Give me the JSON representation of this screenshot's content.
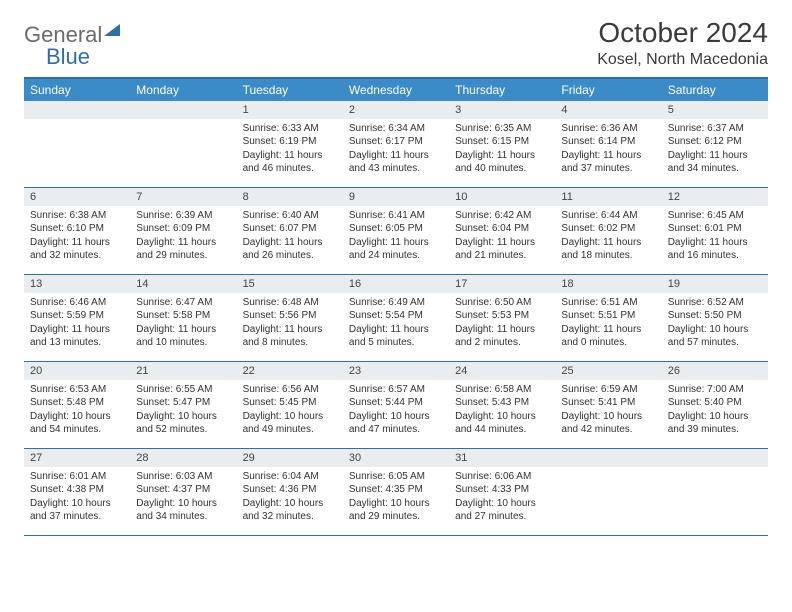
{
  "brand": {
    "part1": "General",
    "part2": "Blue"
  },
  "title": "October 2024",
  "location": "Kosel, North Macedonia",
  "colors": {
    "header_bg": "#3b8bc9",
    "header_text": "#ffffff",
    "rule": "#2f6fa8",
    "daynum_bg": "#e9edef",
    "text": "#333333",
    "logo_gray": "#6b6b6b",
    "logo_blue": "#2f6fa8",
    "page_bg": "#ffffff"
  },
  "calendar": {
    "type": "table",
    "day_labels": [
      "Sunday",
      "Monday",
      "Tuesday",
      "Wednesday",
      "Thursday",
      "Friday",
      "Saturday"
    ],
    "fontsize_header": 12,
    "fontsize_daynum": 11,
    "fontsize_body": 10,
    "weeks": [
      [
        {
          "n": "",
          "sr": "",
          "ss": "",
          "dl1": "",
          "dl2": ""
        },
        {
          "n": "",
          "sr": "",
          "ss": "",
          "dl1": "",
          "dl2": ""
        },
        {
          "n": "1",
          "sr": "Sunrise: 6:33 AM",
          "ss": "Sunset: 6:19 PM",
          "dl1": "Daylight: 11 hours",
          "dl2": "and 46 minutes."
        },
        {
          "n": "2",
          "sr": "Sunrise: 6:34 AM",
          "ss": "Sunset: 6:17 PM",
          "dl1": "Daylight: 11 hours",
          "dl2": "and 43 minutes."
        },
        {
          "n": "3",
          "sr": "Sunrise: 6:35 AM",
          "ss": "Sunset: 6:15 PM",
          "dl1": "Daylight: 11 hours",
          "dl2": "and 40 minutes."
        },
        {
          "n": "4",
          "sr": "Sunrise: 6:36 AM",
          "ss": "Sunset: 6:14 PM",
          "dl1": "Daylight: 11 hours",
          "dl2": "and 37 minutes."
        },
        {
          "n": "5",
          "sr": "Sunrise: 6:37 AM",
          "ss": "Sunset: 6:12 PM",
          "dl1": "Daylight: 11 hours",
          "dl2": "and 34 minutes."
        }
      ],
      [
        {
          "n": "6",
          "sr": "Sunrise: 6:38 AM",
          "ss": "Sunset: 6:10 PM",
          "dl1": "Daylight: 11 hours",
          "dl2": "and 32 minutes."
        },
        {
          "n": "7",
          "sr": "Sunrise: 6:39 AM",
          "ss": "Sunset: 6:09 PM",
          "dl1": "Daylight: 11 hours",
          "dl2": "and 29 minutes."
        },
        {
          "n": "8",
          "sr": "Sunrise: 6:40 AM",
          "ss": "Sunset: 6:07 PM",
          "dl1": "Daylight: 11 hours",
          "dl2": "and 26 minutes."
        },
        {
          "n": "9",
          "sr": "Sunrise: 6:41 AM",
          "ss": "Sunset: 6:05 PM",
          "dl1": "Daylight: 11 hours",
          "dl2": "and 24 minutes."
        },
        {
          "n": "10",
          "sr": "Sunrise: 6:42 AM",
          "ss": "Sunset: 6:04 PM",
          "dl1": "Daylight: 11 hours",
          "dl2": "and 21 minutes."
        },
        {
          "n": "11",
          "sr": "Sunrise: 6:44 AM",
          "ss": "Sunset: 6:02 PM",
          "dl1": "Daylight: 11 hours",
          "dl2": "and 18 minutes."
        },
        {
          "n": "12",
          "sr": "Sunrise: 6:45 AM",
          "ss": "Sunset: 6:01 PM",
          "dl1": "Daylight: 11 hours",
          "dl2": "and 16 minutes."
        }
      ],
      [
        {
          "n": "13",
          "sr": "Sunrise: 6:46 AM",
          "ss": "Sunset: 5:59 PM",
          "dl1": "Daylight: 11 hours",
          "dl2": "and 13 minutes."
        },
        {
          "n": "14",
          "sr": "Sunrise: 6:47 AM",
          "ss": "Sunset: 5:58 PM",
          "dl1": "Daylight: 11 hours",
          "dl2": "and 10 minutes."
        },
        {
          "n": "15",
          "sr": "Sunrise: 6:48 AM",
          "ss": "Sunset: 5:56 PM",
          "dl1": "Daylight: 11 hours",
          "dl2": "and 8 minutes."
        },
        {
          "n": "16",
          "sr": "Sunrise: 6:49 AM",
          "ss": "Sunset: 5:54 PM",
          "dl1": "Daylight: 11 hours",
          "dl2": "and 5 minutes."
        },
        {
          "n": "17",
          "sr": "Sunrise: 6:50 AM",
          "ss": "Sunset: 5:53 PM",
          "dl1": "Daylight: 11 hours",
          "dl2": "and 2 minutes."
        },
        {
          "n": "18",
          "sr": "Sunrise: 6:51 AM",
          "ss": "Sunset: 5:51 PM",
          "dl1": "Daylight: 11 hours",
          "dl2": "and 0 minutes."
        },
        {
          "n": "19",
          "sr": "Sunrise: 6:52 AM",
          "ss": "Sunset: 5:50 PM",
          "dl1": "Daylight: 10 hours",
          "dl2": "and 57 minutes."
        }
      ],
      [
        {
          "n": "20",
          "sr": "Sunrise: 6:53 AM",
          "ss": "Sunset: 5:48 PM",
          "dl1": "Daylight: 10 hours",
          "dl2": "and 54 minutes."
        },
        {
          "n": "21",
          "sr": "Sunrise: 6:55 AM",
          "ss": "Sunset: 5:47 PM",
          "dl1": "Daylight: 10 hours",
          "dl2": "and 52 minutes."
        },
        {
          "n": "22",
          "sr": "Sunrise: 6:56 AM",
          "ss": "Sunset: 5:45 PM",
          "dl1": "Daylight: 10 hours",
          "dl2": "and 49 minutes."
        },
        {
          "n": "23",
          "sr": "Sunrise: 6:57 AM",
          "ss": "Sunset: 5:44 PM",
          "dl1": "Daylight: 10 hours",
          "dl2": "and 47 minutes."
        },
        {
          "n": "24",
          "sr": "Sunrise: 6:58 AM",
          "ss": "Sunset: 5:43 PM",
          "dl1": "Daylight: 10 hours",
          "dl2": "and 44 minutes."
        },
        {
          "n": "25",
          "sr": "Sunrise: 6:59 AM",
          "ss": "Sunset: 5:41 PM",
          "dl1": "Daylight: 10 hours",
          "dl2": "and 42 minutes."
        },
        {
          "n": "26",
          "sr": "Sunrise: 7:00 AM",
          "ss": "Sunset: 5:40 PM",
          "dl1": "Daylight: 10 hours",
          "dl2": "and 39 minutes."
        }
      ],
      [
        {
          "n": "27",
          "sr": "Sunrise: 6:01 AM",
          "ss": "Sunset: 4:38 PM",
          "dl1": "Daylight: 10 hours",
          "dl2": "and 37 minutes."
        },
        {
          "n": "28",
          "sr": "Sunrise: 6:03 AM",
          "ss": "Sunset: 4:37 PM",
          "dl1": "Daylight: 10 hours",
          "dl2": "and 34 minutes."
        },
        {
          "n": "29",
          "sr": "Sunrise: 6:04 AM",
          "ss": "Sunset: 4:36 PM",
          "dl1": "Daylight: 10 hours",
          "dl2": "and 32 minutes."
        },
        {
          "n": "30",
          "sr": "Sunrise: 6:05 AM",
          "ss": "Sunset: 4:35 PM",
          "dl1": "Daylight: 10 hours",
          "dl2": "and 29 minutes."
        },
        {
          "n": "31",
          "sr": "Sunrise: 6:06 AM",
          "ss": "Sunset: 4:33 PM",
          "dl1": "Daylight: 10 hours",
          "dl2": "and 27 minutes."
        },
        {
          "n": "",
          "sr": "",
          "ss": "",
          "dl1": "",
          "dl2": ""
        },
        {
          "n": "",
          "sr": "",
          "ss": "",
          "dl1": "",
          "dl2": ""
        }
      ]
    ]
  }
}
